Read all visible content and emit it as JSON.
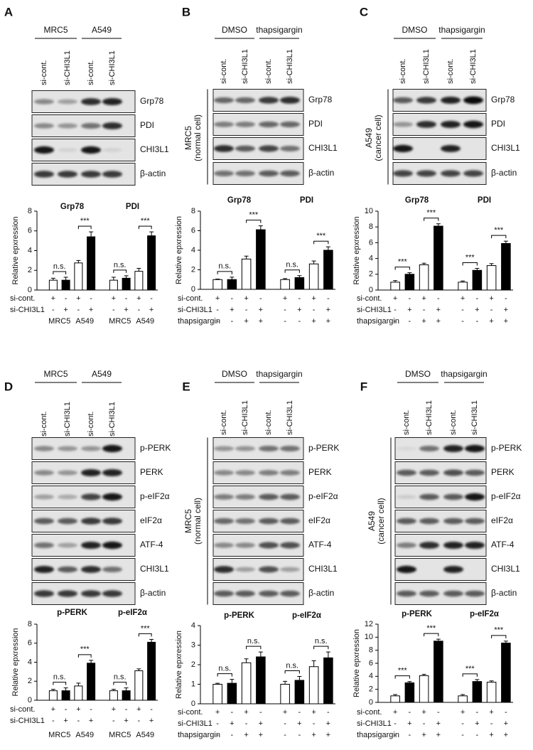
{
  "panels": [
    {
      "label": "A",
      "blot": {
        "headers": [
          "MRC5",
          "A549"
        ],
        "lanes": [
          "si-cont.",
          "si-CHI3L1",
          "si-cont.",
          "si-CHI3L1"
        ],
        "bands": [
          "Grp78",
          "PDI",
          "CHI3L1",
          "β-actin"
        ]
      },
      "chart": {
        "type": "bar",
        "ylabel": "Relative epxression",
        "ylim": [
          0,
          8
        ],
        "yticks": [
          0,
          2,
          4,
          6,
          8
        ],
        "bar_colors": [
          "#ffffff",
          "#000000",
          "#ffffff",
          "#000000"
        ],
        "groups": [
          {
            "name": "Grp78",
            "values": [
              1.0,
              1.0,
              2.75,
              5.4
            ],
            "errors": [
              0.2,
              0.3,
              0.25,
              0.5
            ],
            "pair_labels": [
              "n.s.",
              "***"
            ],
            "pair_names": [
              "MRC5",
              "A549"
            ]
          },
          {
            "name": "PDI",
            "values": [
              1.0,
              1.2,
              1.9,
              5.5
            ],
            "errors": [
              0.3,
              0.25,
              0.3,
              0.4
            ],
            "pair_labels": [
              "n.s.",
              "***"
            ],
            "pair_names": [
              "MRC5",
              "A549"
            ]
          }
        ],
        "conditions": [
          {
            "name": "si-cont.",
            "signs": [
              "+",
              "-",
              "+",
              "-",
              "+",
              "-",
              "+",
              "-"
            ]
          },
          {
            "name": "si-CHI3L1",
            "signs": [
              "-",
              "+",
              "-",
              "+",
              "-",
              "+",
              "-",
              "+"
            ]
          }
        ]
      }
    },
    {
      "label": "B",
      "blot": {
        "headers": [
          "DMSO",
          "thapsigargin"
        ],
        "lanes": [
          "si-cont.",
          "si-CHI3L1",
          "si-cont.",
          "si-CHI3L1"
        ],
        "bands": [
          "Grp78",
          "PDI",
          "CHI3L1",
          "β-actin"
        ],
        "cell_label": [
          "MRC5",
          "(normal cell)"
        ]
      },
      "chart": {
        "type": "bar",
        "ylabel": "Relative epxression",
        "ylim": [
          0,
          8
        ],
        "yticks": [
          0,
          2,
          4,
          6,
          8
        ],
        "bar_colors": [
          "#ffffff",
          "#000000",
          "#ffffff",
          "#000000"
        ],
        "groups": [
          {
            "name": "Grp78",
            "values": [
              1.0,
              1.0,
              3.1,
              6.1
            ],
            "errors": [
              0.05,
              0.25,
              0.3,
              0.4
            ],
            "pair_labels": [
              "n.s.",
              "***"
            ]
          },
          {
            "name": "PDI",
            "values": [
              1.0,
              1.2,
              2.6,
              4.0
            ],
            "errors": [
              0.1,
              0.2,
              0.3,
              0.35
            ],
            "pair_labels": [
              "n.s.",
              "***"
            ]
          }
        ],
        "conditions": [
          {
            "name": "si-cont.",
            "signs": [
              "+",
              "-",
              "+",
              "-",
              "+",
              "-",
              "+",
              "-"
            ]
          },
          {
            "name": "si-CHI3L1",
            "signs": [
              "-",
              "+",
              "-",
              "+",
              "-",
              "+",
              "-",
              "+"
            ]
          },
          {
            "name": "thapsigargin",
            "signs": [
              "-",
              "-",
              "+",
              "+",
              "-",
              "-",
              "+",
              "+"
            ]
          }
        ]
      }
    },
    {
      "label": "C",
      "blot": {
        "headers": [
          "DMSO",
          "thapsigargin"
        ],
        "lanes": [
          "si-cont.",
          "si-CHI3L1",
          "si-cont.",
          "si-CHI3L1"
        ],
        "bands": [
          "Grp78",
          "PDI",
          "CHI3L1",
          "β-actin"
        ],
        "cell_label": [
          "A549",
          "(cancer cell)"
        ]
      },
      "chart": {
        "type": "bar",
        "ylabel": "Relative epxression",
        "ylim": [
          0,
          10
        ],
        "yticks": [
          0,
          2,
          4,
          6,
          8,
          10
        ],
        "bar_colors": [
          "#ffffff",
          "#000000",
          "#ffffff",
          "#000000"
        ],
        "groups": [
          {
            "name": "Grp78",
            "values": [
              1.0,
              2.0,
              3.2,
              8.1
            ],
            "errors": [
              0.2,
              0.2,
              0.2,
              0.3
            ],
            "pair_labels": [
              "***",
              "***"
            ]
          },
          {
            "name": "PDI",
            "values": [
              1.0,
              2.5,
              3.1,
              5.9
            ],
            "errors": [
              0.15,
              0.25,
              0.25,
              0.3
            ],
            "pair_labels": [
              "***",
              "***"
            ]
          }
        ],
        "conditions": [
          {
            "name": "si-cont.",
            "signs": [
              "+",
              "-",
              "+",
              "-",
              "+",
              "-",
              "+",
              "-"
            ]
          },
          {
            "name": "si-CHI3L1",
            "signs": [
              "-",
              "+",
              "-",
              "+",
              "-",
              "+",
              "-",
              "+"
            ]
          },
          {
            "name": "thapsigargin",
            "signs": [
              "-",
              "-",
              "+",
              "+",
              "-",
              "-",
              "+",
              "+"
            ]
          }
        ]
      }
    },
    {
      "label": "D",
      "blot": {
        "headers": [
          "MRC5",
          "A549"
        ],
        "lanes": [
          "si-cont.",
          "si-CHI3L1",
          "si-cont.",
          "si-CHI3L1"
        ],
        "bands": [
          "p-PERK",
          "PERK",
          "p-eIF2α",
          "eIF2α",
          "ATF-4",
          "CHI3L1",
          "β-actin"
        ]
      },
      "chart": {
        "type": "bar",
        "ylabel": "Relative epxression",
        "ylim": [
          0,
          8
        ],
        "yticks": [
          0,
          2,
          4,
          6,
          8
        ],
        "bar_colors": [
          "#ffffff",
          "#000000",
          "#ffffff",
          "#000000"
        ],
        "groups": [
          {
            "name": "p-PERK",
            "values": [
              1.0,
              1.0,
              1.5,
              3.9
            ],
            "errors": [
              0.15,
              0.3,
              0.3,
              0.3
            ],
            "pair_labels": [
              "n.s.",
              "***"
            ],
            "pair_names": [
              "MRC5",
              "A549"
            ]
          },
          {
            "name": "p-eIF2α",
            "values": [
              1.0,
              1.0,
              3.1,
              6.1
            ],
            "errors": [
              0.15,
              0.3,
              0.2,
              0.3
            ],
            "pair_labels": [
              "n.s.",
              "***"
            ],
            "pair_names": [
              "MRC5",
              "A549"
            ]
          }
        ],
        "conditions": [
          {
            "name": "si-cont.",
            "signs": [
              "+",
              "-",
              "+",
              "-",
              "+",
              "-",
              "+",
              "-"
            ]
          },
          {
            "name": "si-CHI3L1",
            "signs": [
              "-",
              "+",
              "-",
              "+",
              "-",
              "+",
              "-",
              "+"
            ]
          }
        ]
      }
    },
    {
      "label": "E",
      "blot": {
        "headers": [
          "DMSO",
          "thapsigargin"
        ],
        "lanes": [
          "si-cont.",
          "si-CHI3L1",
          "si-cont.",
          "si-CHI3L1"
        ],
        "bands": [
          "p-PERK",
          "PERK",
          "p-eIF2α",
          "eIF2α",
          "ATF-4",
          "CHI3L1",
          "β-actin"
        ],
        "cell_label": [
          "MRC5",
          "(normal cell)"
        ]
      },
      "chart": {
        "type": "bar",
        "ylabel": "Relative epxression",
        "ylim": [
          0,
          4
        ],
        "yticks": [
          0,
          1,
          2,
          3,
          4
        ],
        "bar_colors": [
          "#ffffff",
          "#000000",
          "#ffffff",
          "#000000"
        ],
        "groups": [
          {
            "name": "p-PERK",
            "values": [
              1.0,
              1.05,
              2.1,
              2.4
            ],
            "errors": [
              0.05,
              0.2,
              0.2,
              0.25
            ],
            "pair_labels": [
              "n.s.",
              "n.s."
            ]
          },
          {
            "name": "p-eIF2α",
            "values": [
              1.0,
              1.2,
              1.9,
              2.35
            ],
            "errors": [
              0.15,
              0.2,
              0.3,
              0.3
            ],
            "pair_labels": [
              "n.s.",
              "n.s."
            ]
          }
        ],
        "conditions": [
          {
            "name": "si-cont.",
            "signs": [
              "+",
              "-",
              "+",
              "-",
              "+",
              "-",
              "+",
              "-"
            ]
          },
          {
            "name": "si-CHI3L1",
            "signs": [
              "-",
              "+",
              "-",
              "+",
              "-",
              "+",
              "-",
              "+"
            ]
          },
          {
            "name": "thapsigargin",
            "signs": [
              "-",
              "-",
              "+",
              "+",
              "-",
              "-",
              "+",
              "+"
            ]
          }
        ]
      }
    },
    {
      "label": "F",
      "blot": {
        "headers": [
          "DMSO",
          "thapsigargin"
        ],
        "lanes": [
          "si-cont.",
          "si-CHI3L1",
          "si-cont.",
          "si-CHI3L1"
        ],
        "bands": [
          "p-PERK",
          "PERK",
          "p-eIF2α",
          "eIF2α",
          "ATF-4",
          "CHI3L1",
          "β-actin"
        ],
        "cell_label": [
          "A549",
          "(cancer cell)"
        ]
      },
      "chart": {
        "type": "bar",
        "ylabel": "Relative epxression",
        "ylim": [
          0,
          12
        ],
        "yticks": [
          0,
          2,
          4,
          6,
          8,
          10,
          12
        ],
        "bar_colors": [
          "#ffffff",
          "#000000",
          "#ffffff",
          "#000000"
        ],
        "groups": [
          {
            "name": "p-PERK",
            "values": [
              1.0,
              3.0,
              4.1,
              9.4
            ],
            "errors": [
              0.2,
              0.2,
              0.2,
              0.3
            ],
            "pair_labels": [
              "***",
              "***"
            ]
          },
          {
            "name": "p-eIF2α",
            "values": [
              1.0,
              3.2,
              3.1,
              9.1
            ],
            "errors": [
              0.2,
              0.3,
              0.2,
              0.3
            ],
            "pair_labels": [
              "***",
              "***"
            ]
          }
        ],
        "conditions": [
          {
            "name": "si-cont.",
            "signs": [
              "+",
              "-",
              "+",
              "-",
              "+",
              "-",
              "+",
              "-"
            ]
          },
          {
            "name": "si-CHI3L1",
            "signs": [
              "-",
              "+",
              "-",
              "+",
              "-",
              "+",
              "-",
              "+"
            ]
          },
          {
            "name": "thapsigargin",
            "signs": [
              "-",
              "-",
              "+",
              "+",
              "-",
              "-",
              "+",
              "+"
            ]
          }
        ]
      }
    }
  ]
}
